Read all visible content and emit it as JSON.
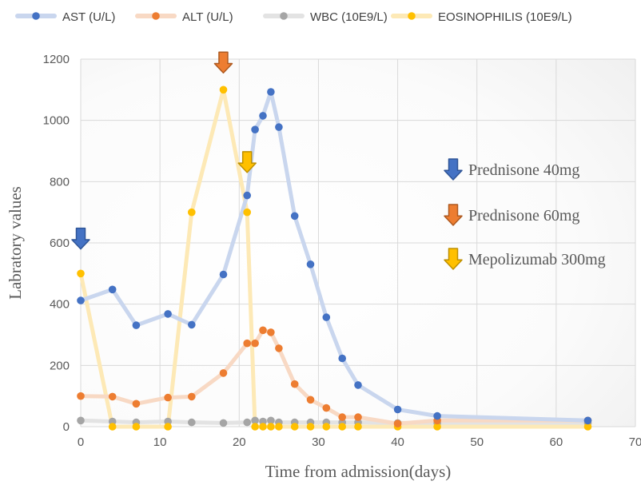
{
  "chart_data": {
    "type": "line",
    "xlabel": "Time from admission(days)",
    "ylabel": "Labratory values",
    "xlim": [
      0,
      70
    ],
    "ylim": [
      0,
      1200
    ],
    "xticks": [
      "0",
      "10",
      "20",
      "30",
      "40",
      "50",
      "60",
      "70"
    ],
    "yticks": [
      "0",
      "200",
      "400",
      "600",
      "800",
      "1000",
      "1200"
    ],
    "grid": true,
    "legend_position": "top",
    "series": [
      {
        "name": "AST (U/L)",
        "line_color": "#c9d6ee",
        "marker_color": "#4472c4",
        "points": [
          [
            0,
            412
          ],
          [
            4,
            448
          ],
          [
            7,
            331
          ],
          [
            11,
            368
          ],
          [
            14,
            333
          ],
          [
            18,
            497
          ],
          [
            21,
            755
          ],
          [
            22,
            970
          ],
          [
            23,
            1015
          ],
          [
            24,
            1093
          ],
          [
            25,
            978
          ],
          [
            27,
            688
          ],
          [
            29,
            530
          ],
          [
            31,
            357
          ],
          [
            33,
            223
          ],
          [
            35,
            136
          ],
          [
            40,
            56
          ],
          [
            45,
            35
          ],
          [
            64,
            20
          ]
        ]
      },
      {
        "name": "ALT (U/L)",
        "line_color": "#f8d9c4",
        "marker_color": "#ed7d31",
        "points": [
          [
            0,
            100
          ],
          [
            4,
            98
          ],
          [
            7,
            75
          ],
          [
            11,
            95
          ],
          [
            14,
            98
          ],
          [
            18,
            175
          ],
          [
            21,
            272
          ],
          [
            22,
            272
          ],
          [
            23,
            315
          ],
          [
            24,
            308
          ],
          [
            25,
            256
          ],
          [
            27,
            139
          ],
          [
            29,
            88
          ],
          [
            31,
            61
          ],
          [
            33,
            31
          ],
          [
            35,
            31
          ],
          [
            40,
            10
          ],
          [
            45,
            20
          ],
          [
            64,
            20
          ]
        ]
      },
      {
        "name": "WBC (10E9/L)",
        "line_color": "#e3e3e3",
        "marker_color": "#a5a5a5",
        "points": [
          [
            0,
            20
          ],
          [
            4,
            17
          ],
          [
            7,
            14
          ],
          [
            11,
            17
          ],
          [
            14,
            14
          ],
          [
            18,
            12
          ],
          [
            21,
            14
          ],
          [
            22,
            20
          ],
          [
            23,
            17
          ],
          [
            24,
            20
          ],
          [
            25,
            14
          ],
          [
            27,
            14
          ],
          [
            29,
            14
          ],
          [
            31,
            14
          ],
          [
            33,
            14
          ],
          [
            35,
            14
          ],
          [
            40,
            12
          ],
          [
            45,
            12
          ],
          [
            64,
            12
          ]
        ]
      },
      {
        "name": "EOSINOPHILIS (10E9/L)",
        "line_color": "#fde9b6",
        "marker_color": "#ffc000",
        "points": [
          [
            0,
            500
          ],
          [
            4,
            0
          ],
          [
            7,
            0
          ],
          [
            11,
            0
          ],
          [
            14,
            700
          ],
          [
            18,
            1100
          ],
          [
            21,
            700
          ],
          [
            22,
            0
          ],
          [
            23,
            0
          ],
          [
            24,
            0
          ],
          [
            25,
            0
          ],
          [
            27,
            0
          ],
          [
            29,
            0
          ],
          [
            31,
            0
          ],
          [
            33,
            0
          ],
          [
            35,
            0
          ],
          [
            40,
            0
          ],
          [
            45,
            0
          ],
          [
            64,
            0
          ]
        ]
      }
    ],
    "annotations": {
      "event_arrows": [
        {
          "day": 0,
          "value": 580,
          "color": "#4472c4",
          "stroke": "#2f5597"
        },
        {
          "day": 18,
          "value": 1155,
          "color": "#ed7d31",
          "stroke": "#ae5a21"
        },
        {
          "day": 21,
          "value": 830,
          "color": "#ffc000",
          "stroke": "#bf9000"
        }
      ],
      "key": [
        {
          "label": "Prednisone 40mg",
          "color": "#4472c4",
          "stroke": "#2f5597"
        },
        {
          "label": "Prednisone 60mg",
          "color": "#ed7d31",
          "stroke": "#ae5a21"
        },
        {
          "label": "Mepolizumab 300mg",
          "color": "#ffc000",
          "stroke": "#bf9000"
        }
      ]
    }
  }
}
